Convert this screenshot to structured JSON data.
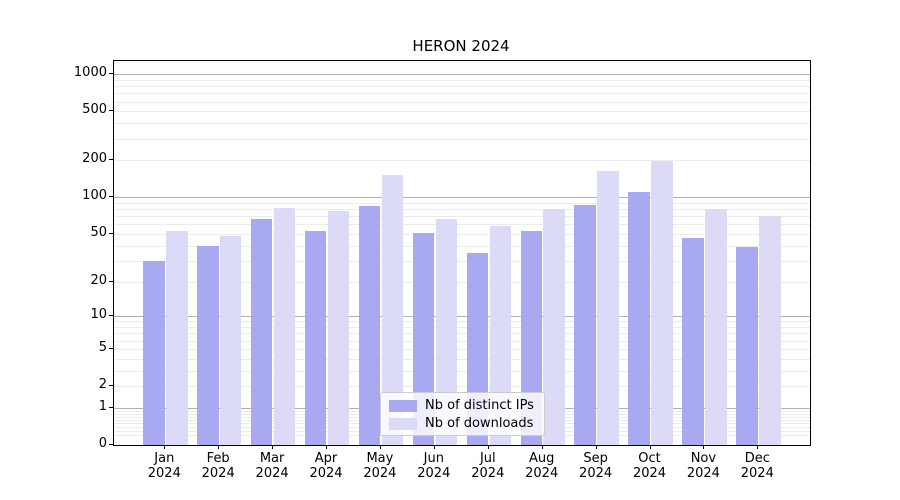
{
  "title": "HERON 2024",
  "colors": {
    "background": "#ffffff",
    "spine": "#000000",
    "text": "#000000",
    "grid_minor": "#ececec",
    "grid_major": "#b0b0b0",
    "legend_border": "#cccccc",
    "ips_bar": "#a9a9f1",
    "downloads_bar": "#dbdbf8"
  },
  "chart_data": {
    "type": "bar",
    "title": "HERON 2024",
    "categories": [
      "Jan 2024",
      "Feb 2024",
      "Mar 2024",
      "Apr 2024",
      "May 2024",
      "Jun 2024",
      "Jul 2024",
      "Aug 2024",
      "Sep 2024",
      "Oct 2024",
      "Nov 2024",
      "Dec 2024"
    ],
    "series": [
      {
        "name": "Nb of distinct IPs",
        "color": "#a9a9f1",
        "values": [
          30,
          40,
          66,
          53,
          85,
          51,
          35,
          53,
          87,
          111,
          46,
          39
        ]
      },
      {
        "name": "Nb of downloads",
        "color": "#dbdbf8",
        "values": [
          53,
          48,
          82,
          77,
          152,
          67,
          58,
          80,
          164,
          198,
          80,
          71
        ]
      }
    ],
    "xlabel": "",
    "ylabel": "",
    "yscale": "log10(1+x)",
    "ylim": [
      0,
      1280
    ],
    "y_ticks": [
      0,
      1,
      2,
      5,
      10,
      20,
      50,
      100,
      200,
      500,
      1000
    ],
    "major_gridlines": [
      1,
      10,
      100,
      1000
    ],
    "minor_gridlines": [
      0.2,
      0.3,
      0.4,
      0.5,
      0.6,
      0.7,
      0.8,
      0.9,
      2,
      3,
      4,
      5,
      6,
      7,
      8,
      9,
      20,
      30,
      40,
      50,
      60,
      70,
      80,
      90,
      200,
      300,
      400,
      500,
      600,
      700,
      800,
      900
    ],
    "grid": true,
    "legend_position": "lower center"
  }
}
